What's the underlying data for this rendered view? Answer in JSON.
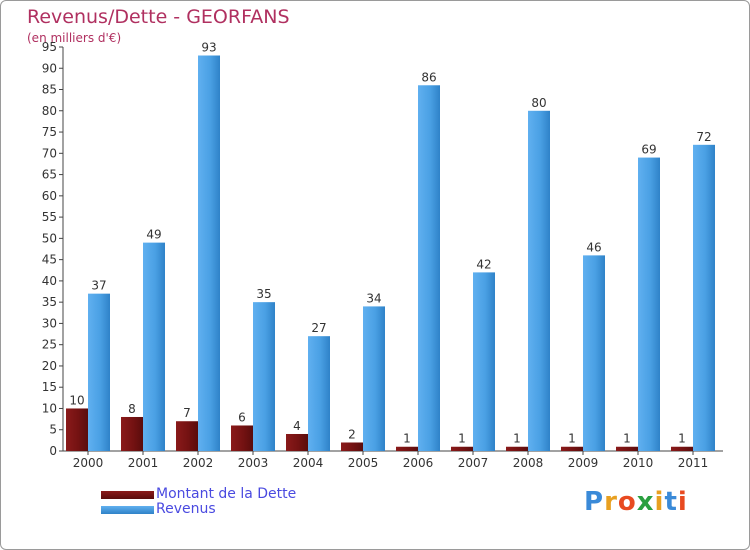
{
  "chart_data": {
    "type": "bar",
    "title": "Revenus/Dette - GEORFANS",
    "subtitle": "(en milliers d'€)",
    "categories": [
      "2000",
      "2001",
      "2002",
      "2003",
      "2004",
      "2005",
      "2006",
      "2007",
      "2008",
      "2009",
      "2010",
      "2011"
    ],
    "series": [
      {
        "name": "Montant de la Dette",
        "color": "#7a1414",
        "values": [
          10,
          8,
          7,
          6,
          4,
          2,
          1,
          1,
          1,
          1,
          1,
          1
        ]
      },
      {
        "name": "Revenus",
        "color": "#4aa0e4",
        "values": [
          37,
          49,
          93,
          35,
          27,
          34,
          86,
          42,
          80,
          46,
          69,
          72
        ]
      }
    ],
    "ylim": [
      0,
      95
    ],
    "yticks": [
      0,
      5,
      10,
      15,
      20,
      25,
      30,
      35,
      40,
      45,
      50,
      55,
      60,
      65,
      70,
      75,
      80,
      85,
      90,
      95
    ],
    "grid": false,
    "legend_position": "bottom-left"
  },
  "logo": {
    "letters": [
      "P",
      "r",
      "o",
      "x",
      "i",
      "t",
      "i"
    ],
    "colors": [
      "#3a8ad8",
      "#e8a020",
      "#e84a20",
      "#2aa040",
      "#e8a020",
      "#3a8ad8",
      "#e84a20"
    ]
  }
}
